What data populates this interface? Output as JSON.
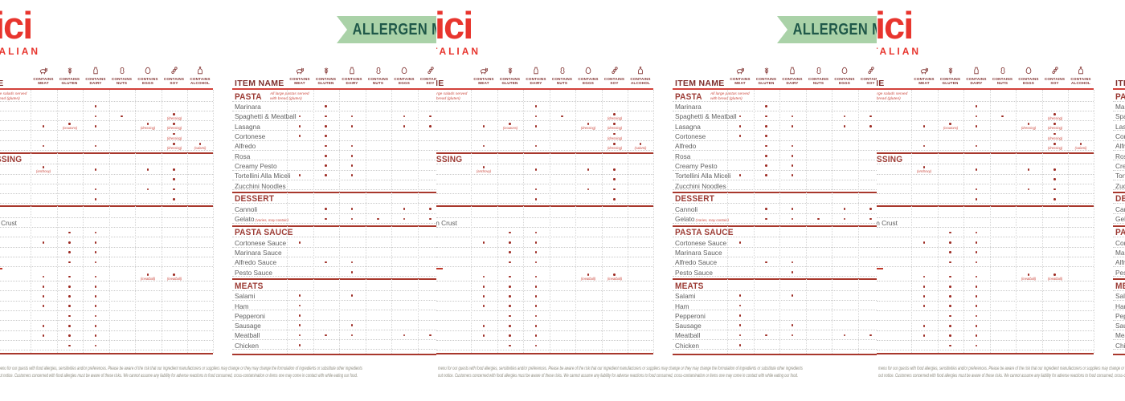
{
  "branding": {
    "logo_text_fragment": "ici",
    "logo_subtext_fragment": "TALIAN",
    "logo_color": "#e8352e",
    "banner_text": "ALLERGEN M",
    "banner_bg": "#aad2a8",
    "banner_text_color": "#1f5849"
  },
  "table_header": {
    "item_name_label": "ITEM NAME",
    "columns": [
      {
        "id": "meat",
        "line1": "CONTAINS",
        "line2": "MEAT",
        "icon": "cow-icon"
      },
      {
        "id": "gluten",
        "line1": "CONTAINS",
        "line2": "GLUTEN",
        "icon": "wheat-icon"
      },
      {
        "id": "dairy",
        "line1": "CONTAINS",
        "line2": "DAIRY",
        "icon": "milk-bottle-icon"
      },
      {
        "id": "nuts",
        "line1": "CONTAINS",
        "line2": "NUTS",
        "icon": "peanut-icon"
      },
      {
        "id": "eggs",
        "line1": "CONTAINS",
        "line2": "EGGS",
        "icon": "egg-icon"
      },
      {
        "id": "soy",
        "line1": "CONTAINS",
        "line2": "SOY",
        "icon": "soy-pod-icon"
      },
      {
        "id": "alcohol",
        "line1": "CONTAINS",
        "line2": "ALCOHOL",
        "icon": "alcohol-bottle-icon"
      }
    ]
  },
  "primary_table": {
    "sections": [
      {
        "header": "PASTA",
        "note_line1": "All large pastas served",
        "note_line2": "with bread (gluten)",
        "rows": [
          {
            "name": "Marinara",
            "allergens": [
              "gluten"
            ],
            "annotations": {}
          },
          {
            "name": "Spaghetti & Meatball",
            "allergens": [
              "meat",
              "gluten",
              "dairy",
              "eggs",
              "soy"
            ],
            "annotations": {}
          },
          {
            "name": "Lasagna",
            "allergens": [
              "meat",
              "gluten",
              "dairy",
              "eggs",
              "soy"
            ],
            "annotations": {}
          },
          {
            "name": "Cortonese",
            "allergens": [
              "meat",
              "gluten"
            ],
            "annotations": {}
          },
          {
            "name": "Alfredo",
            "allergens": [
              "gluten",
              "dairy"
            ],
            "annotations": {}
          },
          {
            "name": "Rosa",
            "allergens": [
              "gluten",
              "dairy"
            ],
            "annotations": {}
          },
          {
            "name": "Creamy Pesto",
            "allergens": [
              "gluten",
              "dairy"
            ],
            "annotations": {}
          },
          {
            "name": "Tortellini Alla Miceli",
            "allergens": [
              "meat",
              "gluten",
              "dairy"
            ],
            "annotations": {}
          },
          {
            "name": "Zucchini Noodles",
            "allergens": [],
            "annotations": {}
          }
        ]
      },
      {
        "header": "DESSERT",
        "rows": [
          {
            "name": "Cannoli",
            "allergens": [
              "gluten",
              "dairy",
              "eggs",
              "soy"
            ],
            "annotations": {}
          },
          {
            "name": "Gelato",
            "name_note": "(Varies, may contain)",
            "allergens": [
              "gluten",
              "dairy",
              "nuts",
              "eggs",
              "soy"
            ],
            "annotations": {}
          }
        ]
      },
      {
        "header": "PASTA SAUCE",
        "rows": [
          {
            "name": "Cortonese Sauce",
            "allergens": [
              "meat"
            ],
            "annotations": {}
          },
          {
            "name": "Marinara Sauce",
            "allergens": [],
            "annotations": {}
          },
          {
            "name": "Alfredo Sauce",
            "allergens": [
              "gluten",
              "dairy"
            ],
            "annotations": {}
          },
          {
            "name": "Pesto Sauce",
            "allergens": [
              "dairy"
            ],
            "annotations": {}
          }
        ]
      },
      {
        "header": "MEATS",
        "rows": [
          {
            "name": "Salami",
            "allergens": [
              "meat",
              "dairy"
            ],
            "annotations": {}
          },
          {
            "name": "Ham",
            "allergens": [
              "meat"
            ],
            "annotations": {}
          },
          {
            "name": "Pepperoni",
            "allergens": [
              "meat"
            ],
            "annotations": {}
          },
          {
            "name": "Sausage",
            "allergens": [
              "meat",
              "dairy"
            ],
            "annotations": {}
          },
          {
            "name": "Meatball",
            "allergens": [
              "meat",
              "gluten",
              "dairy",
              "eggs",
              "soy"
            ],
            "annotations": {}
          },
          {
            "name": "Chicken",
            "allergens": [
              "meat"
            ],
            "annotations": {}
          }
        ]
      }
    ]
  },
  "cropped_table": {
    "item_name_label": "ITEM NAME",
    "sections": [
      {
        "header": "",
        "note_line1": "All large salads served",
        "note_line2": "with bread (gluten)",
        "rows": [
          {
            "name": "",
            "allergens": [
              "dairy"
            ],
            "annotations": {}
          },
          {
            "name": "",
            "allergens": [
              "dairy",
              "nuts",
              "soy"
            ],
            "annotations": {
              "soy": "(dressing)"
            }
          },
          {
            "name": "",
            "allergens": [
              "meat",
              "gluten",
              "dairy",
              "eggs",
              "soy"
            ],
            "annotations": {
              "gluten": "(croutons)",
              "eggs": "(dressing)",
              "soy": "(dressing)"
            }
          },
          {
            "name": "",
            "allergens": [
              "soy"
            ],
            "annotations": {
              "soy": "(dressing)"
            }
          },
          {
            "name": "",
            "allergens": [
              "meat",
              "dairy",
              "soy",
              "alcohol"
            ],
            "annotations": {
              "soy": "(dressing)",
              "alcohol": "(salami)"
            }
          }
        ]
      },
      {
        "header": "DRESSING",
        "rows": [
          {
            "name": "",
            "allergens": [
              "meat",
              "dairy",
              "eggs",
              "soy"
            ],
            "annotations": {
              "meat": "(anchovy)"
            }
          },
          {
            "name": "",
            "allergens": [
              "soy"
            ],
            "annotations": {}
          },
          {
            "name": "",
            "allergens": [
              "dairy",
              "eggs",
              "soy"
            ],
            "annotations": {}
          },
          {
            "name": "",
            "allergens": [
              "dairy",
              "soy"
            ],
            "annotations": {}
          }
        ]
      },
      {
        "header": "",
        "rows": [
          {
            "name": "/Vegan Crust",
            "allergens": [],
            "annotations": {}
          },
          {
            "name": "",
            "allergens": [
              "gluten",
              "dairy"
            ],
            "annotations": {}
          },
          {
            "name": "",
            "allergens": [
              "meat",
              "gluten",
              "dairy"
            ],
            "annotations": {}
          },
          {
            "name": "",
            "allergens": [
              "gluten",
              "dairy"
            ],
            "annotations": {}
          },
          {
            "name": "",
            "allergens": [
              "gluten",
              "dairy"
            ],
            "annotations": {}
          }
        ]
      },
      {
        "header": "",
        "compact": true,
        "rows": [
          {
            "name": "e",
            "allergens": [
              "meat",
              "gluten",
              "dairy",
              "eggs",
              "soy"
            ],
            "annotations": {
              "eggs": "(meatball)",
              "soy": "(meatball)"
            }
          },
          {
            "name": "",
            "allergens": [
              "meat",
              "gluten",
              "dairy"
            ],
            "annotations": {}
          },
          {
            "name": "",
            "allergens": [
              "meat",
              "gluten",
              "dairy"
            ],
            "annotations": {}
          },
          {
            "name": "",
            "allergens": [
              "meat",
              "gluten",
              "dairy"
            ],
            "annotations": {}
          },
          {
            "name": "",
            "allergens": [
              "gluten",
              "dairy"
            ],
            "annotations": {}
          },
          {
            "name": "",
            "allergens": [
              "meat",
              "gluten",
              "dairy"
            ],
            "annotations": {}
          },
          {
            "name": "",
            "allergens": [
              "meat",
              "gluten",
              "dairy"
            ],
            "annotations": {}
          },
          {
            "name": "eo",
            "allergens": [
              "gluten",
              "dairy"
            ],
            "annotations": {}
          }
        ]
      }
    ]
  },
  "footer": {
    "line1": "menu for our guests with food allergies, sensitivities and/or preferences.  Please be aware of the risk that our ingredient manufacturers or suppliers may change or they may change the formulation of ingredients or substitute other ingredients",
    "line2": "out notice. Customers concerned with food allergies must be aware of these risks. We cannot assume any liability for adverse reactions to food consumed, cross-contamination or items one may come in contact with while eating our food."
  },
  "colors": {
    "accent_red": "#d2413a",
    "maroon": "#7e2e2c",
    "dot": "#9c2a22",
    "annotation_red": "#cc4b41",
    "banner_green": "#aad2a8",
    "banner_text_green": "#1f5849",
    "logo_red": "#e8352e"
  }
}
